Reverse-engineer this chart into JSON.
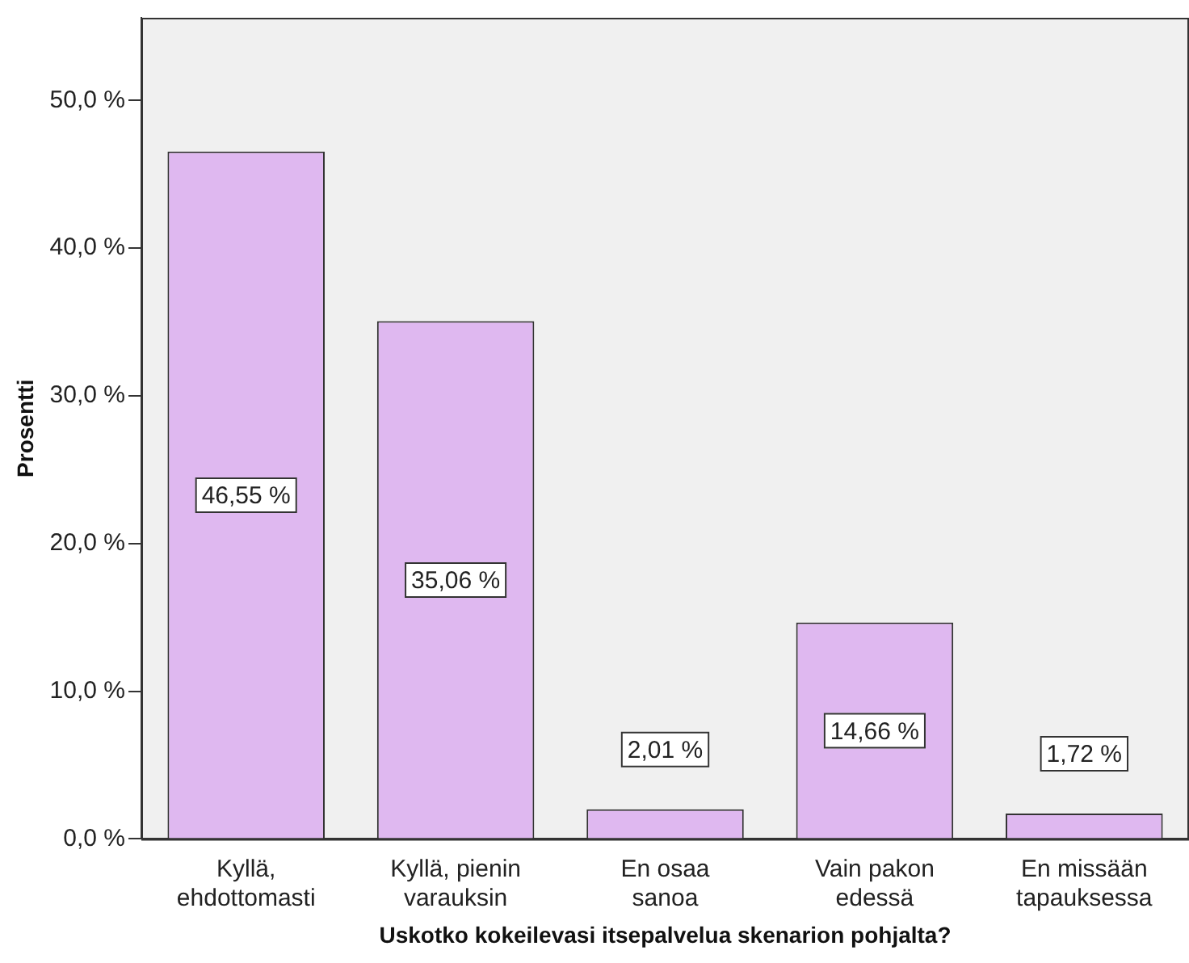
{
  "chart_data": {
    "type": "bar",
    "xlabel": "Uskotko kokeilevasi itsepalvelua skenarion pohjalta?",
    "ylabel": "Prosentti",
    "categories": [
      "Kyllä, ehdottomasti",
      "Kyllä, pienin varauksin",
      "En osaa sanoa",
      "Vain pakon edessä",
      "En missään tapauksessa"
    ],
    "values": [
      46.55,
      35.06,
      2.01,
      14.66,
      1.72
    ],
    "value_labels": [
      "46,55 %",
      "35,06 %",
      "2,01 %",
      "14,66 %",
      "1,72 %"
    ],
    "color": "#dfb8f0",
    "ylim": [
      0,
      55.6
    ],
    "yticks": [
      {
        "value": 0,
        "label": "0,0 %"
      },
      {
        "value": 10,
        "label": "10,0 %"
      },
      {
        "value": 20,
        "label": "20,0 %"
      },
      {
        "value": 30,
        "label": "30,0 %"
      },
      {
        "value": 40,
        "label": "40,0 %"
      },
      {
        "value": 50,
        "label": "50,0 %"
      }
    ],
    "grid": false,
    "legend": false
  }
}
